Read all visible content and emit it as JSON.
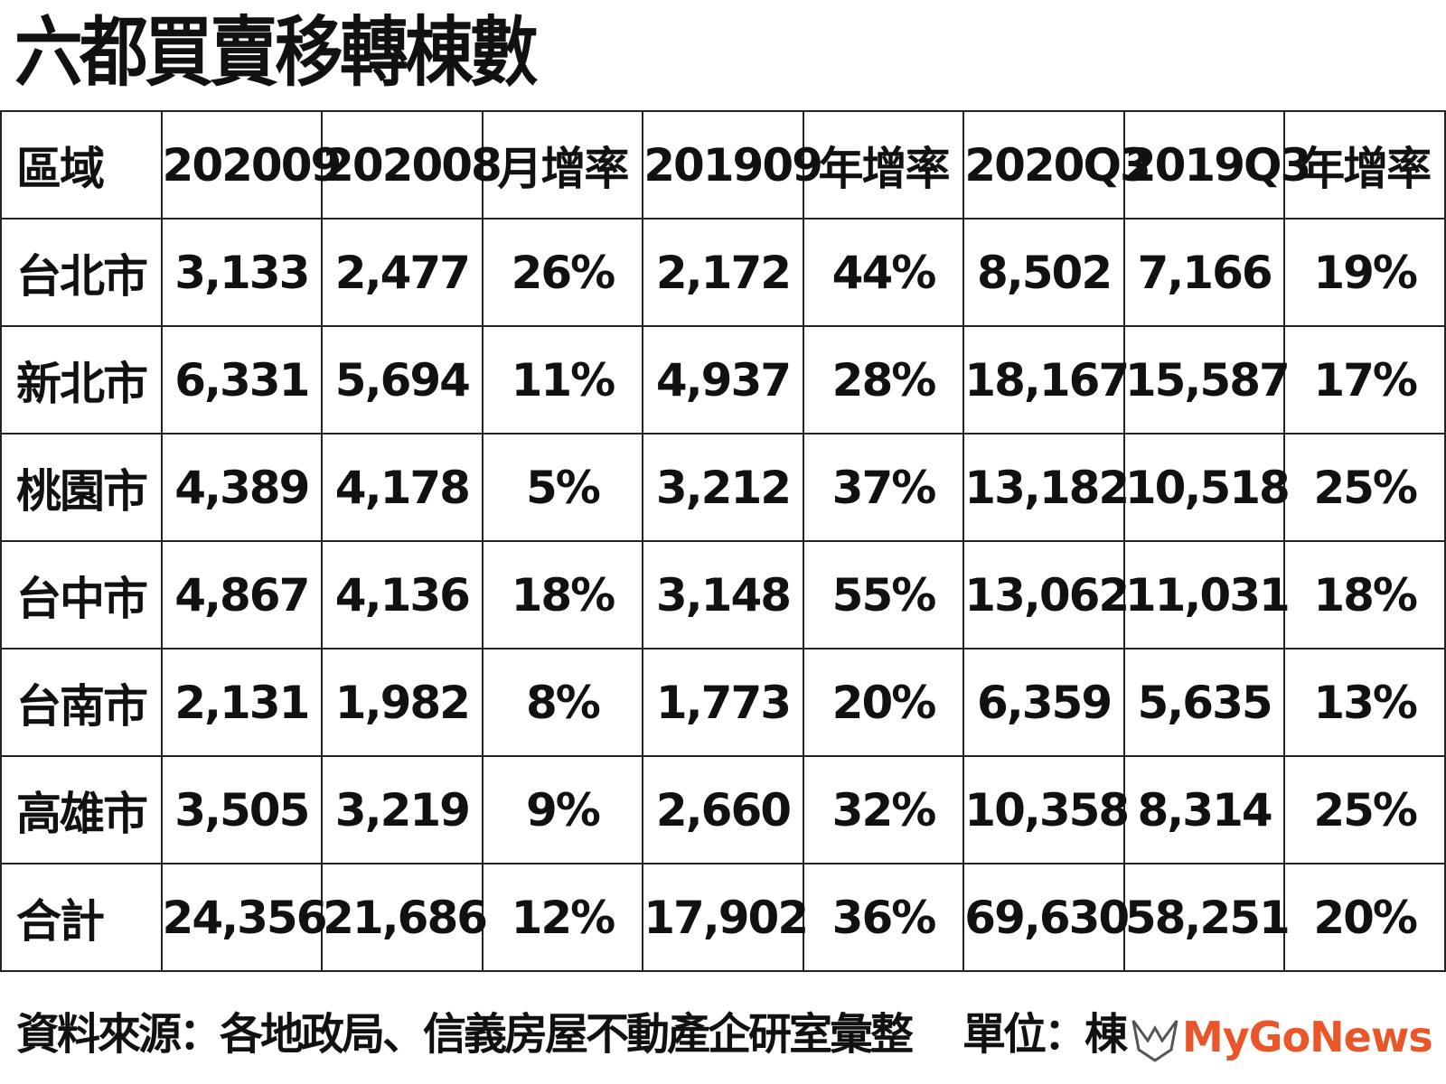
{
  "header": {
    "title": "六都買賣移轉棟數"
  },
  "table": {
    "columns": [
      "區域",
      "202009",
      "202008",
      "月增率",
      "201909",
      "年增率",
      "2020Q3",
      "2019Q3",
      "年增率"
    ],
    "rows": [
      [
        "台北市",
        "3,133",
        "2,477",
        "26%",
        "2,172",
        "44%",
        "8,502",
        "7,166",
        "19%"
      ],
      [
        "新北市",
        "6,331",
        "5,694",
        "11%",
        "4,937",
        "28%",
        "18,167",
        "15,587",
        "17%"
      ],
      [
        "桃園市",
        "4,389",
        "4,178",
        "5%",
        "3,212",
        "37%",
        "13,182",
        "10,518",
        "25%"
      ],
      [
        "台中市",
        "4,867",
        "4,136",
        "18%",
        "3,148",
        "55%",
        "13,062",
        "11,031",
        "18%"
      ],
      [
        "台南市",
        "2,131",
        "1,982",
        "8%",
        "1,773",
        "20%",
        "6,359",
        "5,635",
        "13%"
      ],
      [
        "高雄市",
        "3,505",
        "3,219",
        "9%",
        "2,660",
        "32%",
        "10,358",
        "8,314",
        "25%"
      ],
      [
        "合計",
        "24,356",
        "21,686",
        "12%",
        "17,902",
        "36%",
        "69,630",
        "58,251",
        "20%"
      ]
    ]
  },
  "footer": {
    "source": "資料來源：各地政局、信義房屋不動產企研室彙整",
    "unit": "單位：棟",
    "logo": "MyGoNews"
  }
}
